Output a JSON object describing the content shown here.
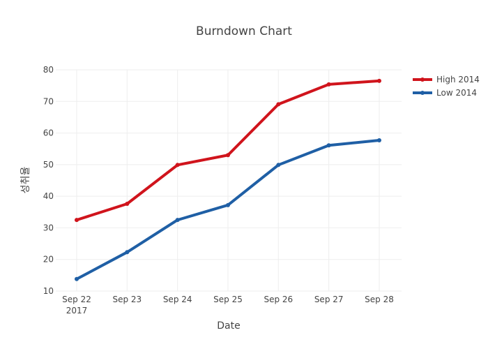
{
  "chart_data": {
    "type": "line",
    "title": "Burndown Chart",
    "xlabel": "Date",
    "ylabel": "성취율",
    "ylim": [
      10,
      80
    ],
    "y_ticks": [
      "10",
      "20",
      "30",
      "40",
      "50",
      "60",
      "70",
      "80"
    ],
    "x": [
      "2017-09-22",
      "2017-09-23",
      "2017-09-24",
      "2017-09-25",
      "2017-09-26",
      "2017-09-27",
      "2017-09-28"
    ],
    "x_tick_labels": [
      "Sep 22",
      "Sep 23",
      "Sep 24",
      "Sep 25",
      "Sep 26",
      "Sep 27",
      "Sep 28"
    ],
    "x_year_label": "2017",
    "grid": true,
    "legend_position": "top-right",
    "series": [
      {
        "name": "High 2014",
        "color": "#d0141c",
        "values": [
          32.5,
          37.6,
          49.9,
          53.0,
          69.1,
          75.4,
          76.5
        ]
      },
      {
        "name": "Low 2014",
        "color": "#1f5fa5",
        "values": [
          13.8,
          22.3,
          32.5,
          37.2,
          49.9,
          56.1,
          57.7
        ]
      }
    ]
  }
}
